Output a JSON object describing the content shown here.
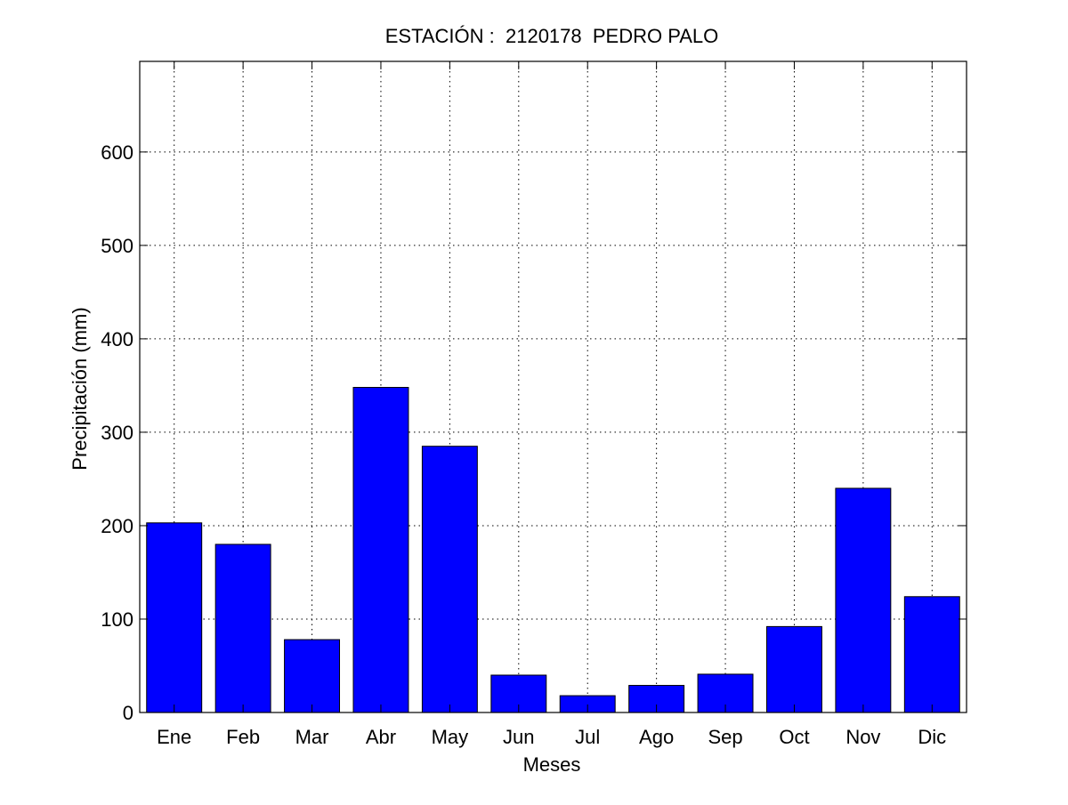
{
  "chart_data": {
    "type": "bar",
    "title": "ESTACIÓN :  2120178  PEDRO PALO",
    "xlabel": "Meses",
    "ylabel": "Precipitación (mm)",
    "categories": [
      "Ene",
      "Feb",
      "Mar",
      "Abr",
      "May",
      "Jun",
      "Jul",
      "Ago",
      "Sep",
      "Oct",
      "Nov",
      "Dic"
    ],
    "values": [
      203,
      180,
      78,
      348,
      285,
      40,
      18,
      29,
      41,
      92,
      240,
      124
    ],
    "ylim": [
      0,
      697
    ],
    "yticks": [
      0,
      100,
      200,
      300,
      400,
      500,
      600
    ],
    "grid": true,
    "bar_color": "#0000ff"
  }
}
